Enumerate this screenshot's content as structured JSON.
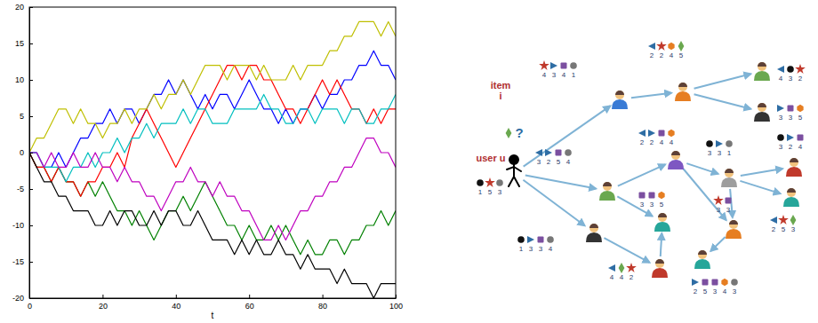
{
  "chart_data": {
    "type": "line",
    "x": [
      0,
      2,
      4,
      6,
      8,
      10,
      12,
      14,
      16,
      18,
      20,
      22,
      24,
      26,
      28,
      30,
      32,
      34,
      36,
      38,
      40,
      42,
      44,
      46,
      48,
      50,
      52,
      54,
      56,
      58,
      60,
      62,
      64,
      66,
      68,
      70,
      72,
      74,
      76,
      78,
      80,
      82,
      84,
      86,
      88,
      90,
      92,
      94,
      96,
      98,
      100
    ],
    "xlim": [
      0,
      100
    ],
    "xticks": [
      0,
      20,
      40,
      60,
      80,
      100
    ],
    "ylim": [
      -20,
      20
    ],
    "yticks": [
      -20,
      -15,
      -10,
      -5,
      0,
      5,
      10,
      15,
      20
    ],
    "x_label": "t",
    "grid": false,
    "series": [
      {
        "color": "#0000ff",
        "values": [
          0,
          0,
          -2,
          -2,
          0,
          -2,
          0,
          2,
          2,
          4,
          4,
          6,
          4,
          6,
          6,
          4,
          6,
          8,
          8,
          10,
          8,
          10,
          8,
          6,
          8,
          6,
          8,
          8,
          6,
          8,
          10,
          8,
          6,
          6,
          4,
          6,
          4,
          6,
          6,
          8,
          6,
          8,
          8,
          10,
          10,
          12,
          12,
          14,
          12,
          12,
          10
        ]
      },
      {
        "color": "#008000",
        "values": [
          0,
          -2,
          -2,
          -4,
          -2,
          -4,
          -4,
          -6,
          -4,
          -6,
          -4,
          -6,
          -8,
          -8,
          -10,
          -8,
          -10,
          -12,
          -10,
          -8,
          -8,
          -6,
          -8,
          -6,
          -4,
          -6,
          -8,
          -10,
          -10,
          -12,
          -10,
          -12,
          -12,
          -10,
          -12,
          -10,
          -12,
          -14,
          -12,
          -14,
          -14,
          -12,
          -12,
          -14,
          -12,
          -12,
          -10,
          -10,
          -8,
          -10,
          -8
        ]
      },
      {
        "color": "#ff0000",
        "values": [
          0,
          -2,
          -2,
          -4,
          -2,
          -4,
          -4,
          -6,
          -4,
          -4,
          -2,
          -2,
          0,
          -2,
          2,
          4,
          6,
          4,
          2,
          0,
          -2,
          0,
          2,
          4,
          6,
          8,
          10,
          12,
          12,
          10,
          12,
          12,
          10,
          10,
          8,
          6,
          6,
          4,
          6,
          8,
          10,
          8,
          10,
          8,
          6,
          6,
          4,
          6,
          4,
          6,
          6
        ]
      },
      {
        "color": "#00bfbf",
        "values": [
          0,
          0,
          -2,
          -2,
          -2,
          -4,
          -2,
          -2,
          0,
          -2,
          0,
          0,
          2,
          0,
          2,
          2,
          4,
          2,
          4,
          4,
          4,
          6,
          4,
          6,
          6,
          4,
          4,
          4,
          6,
          6,
          6,
          6,
          8,
          6,
          6,
          4,
          4,
          6,
          6,
          4,
          6,
          6,
          6,
          4,
          6,
          6,
          4,
          4,
          6,
          6,
          8
        ]
      },
      {
        "color": "#bf00bf",
        "values": [
          0,
          0,
          -2,
          0,
          -2,
          -2,
          0,
          -2,
          -2,
          0,
          -2,
          -2,
          -4,
          -2,
          -4,
          -4,
          -6,
          -6,
          -8,
          -6,
          -4,
          -4,
          -2,
          -4,
          -4,
          -6,
          -4,
          -6,
          -6,
          -8,
          -8,
          -10,
          -12,
          -12,
          -10,
          -12,
          -10,
          -8,
          -8,
          -6,
          -6,
          -4,
          -4,
          -2,
          -2,
          0,
          2,
          2,
          0,
          0,
          -2
        ]
      },
      {
        "color": "#bfbf00",
        "values": [
          0,
          2,
          2,
          4,
          6,
          6,
          4,
          6,
          4,
          4,
          2,
          4,
          4,
          6,
          4,
          6,
          6,
          8,
          6,
          8,
          8,
          10,
          8,
          10,
          12,
          12,
          12,
          10,
          12,
          12,
          12,
          10,
          12,
          10,
          10,
          10,
          12,
          10,
          12,
          12,
          12,
          14,
          14,
          16,
          16,
          18,
          18,
          18,
          16,
          18,
          16
        ]
      },
      {
        "color": "#000000",
        "values": [
          0,
          -2,
          -4,
          -4,
          -6,
          -6,
          -8,
          -8,
          -8,
          -10,
          -10,
          -8,
          -10,
          -8,
          -8,
          -10,
          -10,
          -8,
          -10,
          -8,
          -8,
          -10,
          -10,
          -8,
          -10,
          -12,
          -12,
          -12,
          -14,
          -12,
          -14,
          -12,
          -14,
          -14,
          -12,
          -14,
          -14,
          -16,
          -14,
          -16,
          -16,
          -16,
          -18,
          -16,
          -18,
          -18,
          -18,
          -20,
          -18,
          -18,
          -18
        ]
      }
    ]
  },
  "diagram": {
    "item_label": [
      "item",
      "i"
    ],
    "query": "?",
    "nodes": [
      {
        "label": "user u",
        "ratings": [
          1,
          5,
          3
        ]
      },
      {
        "ratings": [
          4,
          3,
          4,
          1
        ]
      },
      {
        "ratings": [
          2,
          2,
          4,
          5
        ]
      },
      {
        "ratings": [
          4,
          3,
          2
        ]
      },
      {
        "ratings": [
          3,
          3,
          5
        ]
      },
      {
        "ratings": [
          2,
          2,
          4,
          4
        ]
      },
      {
        "ratings": [
          3,
          2,
          5,
          4
        ]
      },
      {
        "ratings": [
          3,
          3,
          1
        ]
      },
      {
        "ratings": [
          3,
          2,
          4
        ]
      },
      {
        "ratings": [
          3,
          3,
          5
        ]
      },
      {
        "ratings": [
          3,
          3
        ]
      },
      {
        "ratings": [
          2,
          5,
          3
        ]
      },
      {
        "ratings": [
          1,
          3,
          3,
          4
        ]
      },
      {
        "ratings": [
          4,
          4,
          2
        ]
      },
      {
        "ratings": [
          2,
          5,
          3,
          4,
          3
        ]
      }
    ]
  }
}
